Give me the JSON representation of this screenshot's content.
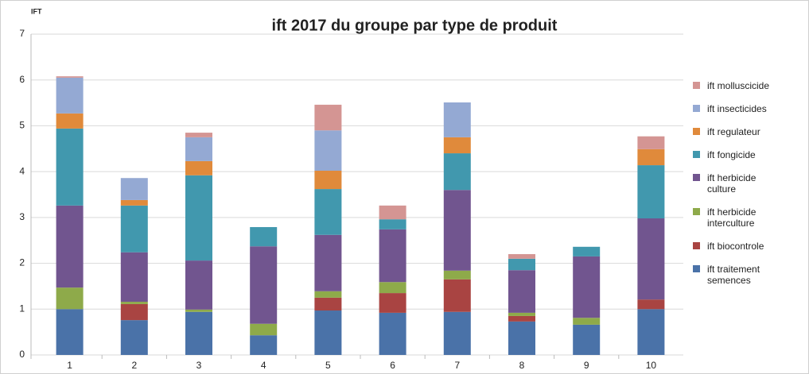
{
  "chart_data": {
    "type": "stacked_bar",
    "title": "ift 2017 du groupe par type de produit",
    "y_label": "IFT",
    "categories": [
      "1",
      "2",
      "3",
      "4",
      "5",
      "6",
      "7",
      "8",
      "9",
      "10"
    ],
    "series": [
      {
        "name": "ift traitement semences",
        "color": "#4a72a8",
        "values": [
          1.0,
          0.76,
          0.94,
          0.43,
          0.97,
          0.92,
          0.94,
          0.73,
          0.66,
          1.0
        ]
      },
      {
        "name": "ift biocontrole",
        "color": "#a94442",
        "values": [
          0,
          0.35,
          0,
          0,
          0.28,
          0.43,
          0.71,
          0.12,
          0,
          0.21
        ]
      },
      {
        "name": "ift herbicide interculture",
        "color": "#8eaa4a",
        "values": [
          0.47,
          0.05,
          0.05,
          0.25,
          0.14,
          0.24,
          0.19,
          0.07,
          0.15,
          0
        ]
      },
      {
        "name": "ift herbicide culture",
        "color": "#71558f",
        "values": [
          1.79,
          1.08,
          1.07,
          1.69,
          1.23,
          1.15,
          1.76,
          0.93,
          1.34,
          1.77
        ]
      },
      {
        "name": "ift fongicide",
        "color": "#4198ae",
        "values": [
          1.68,
          1.02,
          1.86,
          0.42,
          1.0,
          0.22,
          0.8,
          0.25,
          0.21,
          1.16
        ]
      },
      {
        "name": "ift regulateur",
        "color": "#e08a3b",
        "values": [
          0.33,
          0.12,
          0.31,
          0,
          0.4,
          0,
          0.35,
          0,
          0,
          0.35
        ]
      },
      {
        "name": "ift insecticides",
        "color": "#94a9d3",
        "values": [
          0.78,
          0.48,
          0.52,
          0,
          0.88,
          0,
          0.76,
          0,
          0,
          0
        ]
      },
      {
        "name": "ift molluscicide",
        "color": "#d49593",
        "values": [
          0.03,
          0,
          0.1,
          0,
          0.56,
          0.3,
          0,
          0.1,
          0,
          0.28
        ]
      }
    ],
    "ylim": [
      0,
      7
    ],
    "yticks": [
      0,
      1,
      2,
      3,
      4,
      5,
      6,
      7
    ],
    "grid": true,
    "legend": "right"
  }
}
